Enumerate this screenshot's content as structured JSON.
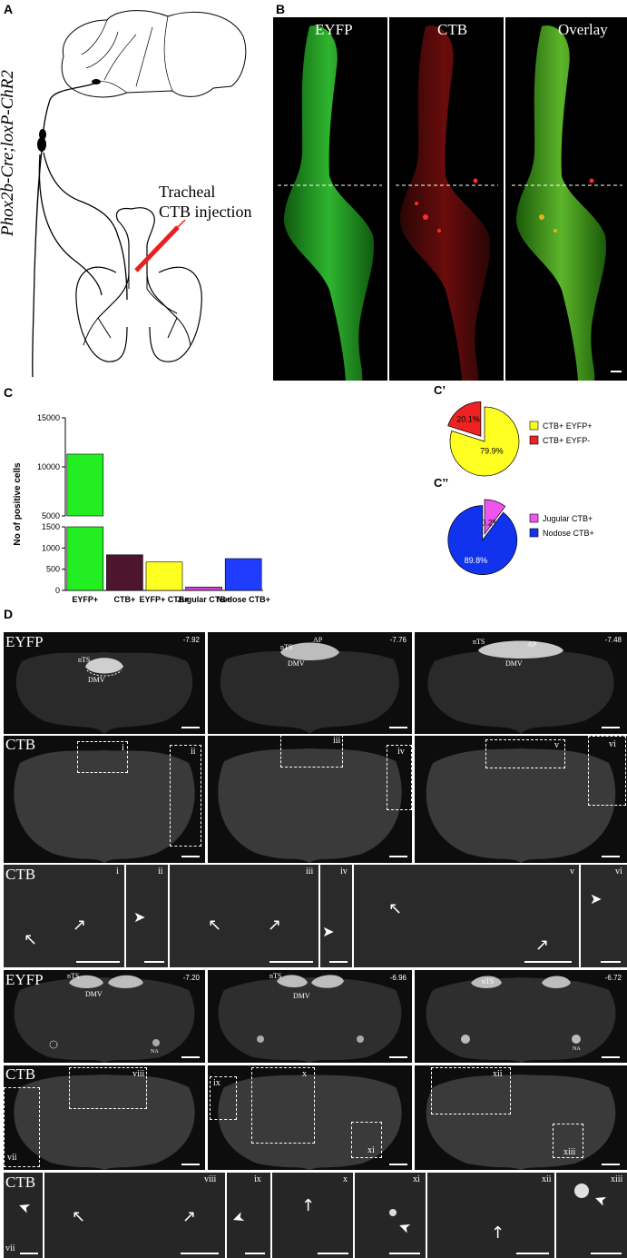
{
  "panel_labels": {
    "A": "A",
    "B": "B",
    "C": "C",
    "C_prime": "C’",
    "C_dprime": "C’’",
    "D": "D"
  },
  "panel_a": {
    "genotype": "Phox2b-Cre;loxP-ChR2",
    "injection_line1": "Tracheal",
    "injection_line2": "CTB injection"
  },
  "panel_b": {
    "labels": [
      "EYFP",
      "CTB",
      "Overlay"
    ]
  },
  "chart_data": [
    {
      "type": "bar",
      "ylabel": "No of positive cells",
      "categories": [
        "EYFP+",
        "CTB+",
        "EYFP+ CTB+",
        "Jugular CTB+",
        "Nodose CTB+"
      ],
      "values": [
        11300,
        840,
        670,
        80,
        750
      ],
      "colors": [
        "#22ee22",
        "#4d1530",
        "#ffff22",
        "#cc44cc",
        "#1f3cff"
      ],
      "axis_break": true,
      "lower_ticks": [
        "0",
        "500",
        "1000",
        "1500"
      ],
      "upper_ticks": [
        "5000",
        "10000",
        "15000"
      ]
    },
    {
      "type": "pie",
      "labels": [
        "CTB+ EYFP+",
        "CTB+ EYFP-"
      ],
      "values": [
        79.9,
        20.1
      ],
      "value_labels": [
        "79.9%",
        "20.1%"
      ],
      "colors": [
        "#ffff22",
        "#ee2222"
      ]
    },
    {
      "type": "pie",
      "labels": [
        "Jugular CTB+",
        "Nodose CTB+"
      ],
      "values": [
        10.2,
        89.8
      ],
      "value_labels": [
        "10.2%",
        "89.8%"
      ],
      "colors": [
        "#ee55ee",
        "#1133ee"
      ]
    }
  ],
  "panel_d": {
    "row_labels": {
      "eyfp": "EYFP",
      "ctb": "CTB"
    },
    "coords_top": [
      "-7.92",
      "-7.76",
      "-7.48"
    ],
    "coords_bottom": [
      "-7.20",
      "-6.96",
      "-6.72"
    ],
    "regions": {
      "nts": "nTS",
      "dmv": "DMV",
      "ap": "AP",
      "na": "NA"
    },
    "roman": [
      "i",
      "ii",
      "iii",
      "iv",
      "v",
      "vi",
      "vii",
      "viii",
      "ix",
      "x",
      "xi",
      "xii",
      "xiii"
    ]
  }
}
